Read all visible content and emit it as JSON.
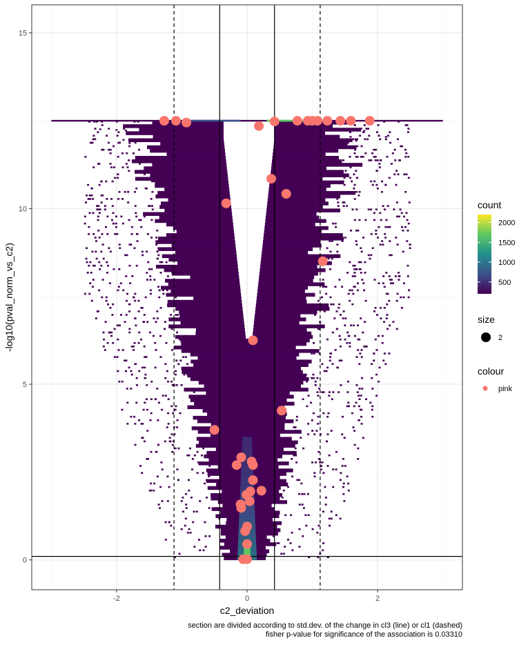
{
  "chart_data": {
    "type": "scatter",
    "title": "",
    "xlabel": "c2_deviation",
    "ylabel": "-log10(pval_norm_vs_c2)",
    "xlim": [
      -3.3,
      3.3
    ],
    "ylim": [
      -0.85,
      15.8
    ],
    "x_ticks": [
      -2,
      0,
      2
    ],
    "x_tick_labels": [
      "-2",
      "0",
      "2"
    ],
    "y_ticks": [
      0,
      5,
      10,
      15
    ],
    "y_tick_labels": [
      "0",
      "5",
      "10",
      "15"
    ],
    "grid": true,
    "background_density": {
      "description_hidden": true,
      "aes": "count",
      "x_range": [
        -3.0,
        3.0
      ],
      "y_cap": 12.5,
      "count_max": 2200,
      "colors": [
        "#440154",
        "#3b528b",
        "#21908c",
        "#5dc863",
        "#fde725"
      ]
    },
    "vlines_solid": [
      -0.42,
      0.42
    ],
    "vlines_dashed": [
      -1.12,
      1.12
    ],
    "hline": 0.1,
    "points": [
      {
        "x": -1.27,
        "y": 12.5
      },
      {
        "x": -1.09,
        "y": 12.5
      },
      {
        "x": -0.93,
        "y": 12.45
      },
      {
        "x": 0.18,
        "y": 12.35
      },
      {
        "x": 0.42,
        "y": 12.48
      },
      {
        "x": 0.77,
        "y": 12.5
      },
      {
        "x": 0.93,
        "y": 12.5
      },
      {
        "x": 1.0,
        "y": 12.5
      },
      {
        "x": 1.08,
        "y": 12.5
      },
      {
        "x": 1.23,
        "y": 12.5
      },
      {
        "x": 1.43,
        "y": 12.5
      },
      {
        "x": 1.59,
        "y": 12.5
      },
      {
        "x": 1.88,
        "y": 12.5
      },
      {
        "x": 0.37,
        "y": 10.85
      },
      {
        "x": 0.6,
        "y": 10.42
      },
      {
        "x": -0.32,
        "y": 10.15
      },
      {
        "x": 1.16,
        "y": 8.5
      },
      {
        "x": 0.09,
        "y": 6.25
      },
      {
        "x": 0.53,
        "y": 4.25
      },
      {
        "x": -0.5,
        "y": 3.7
      },
      {
        "x": -0.09,
        "y": 2.92
      },
      {
        "x": 0.07,
        "y": 2.8
      },
      {
        "x": -0.16,
        "y": 2.7
      },
      {
        "x": 0.09,
        "y": 2.7
      },
      {
        "x": 0.09,
        "y": 2.27
      },
      {
        "x": 0.22,
        "y": 1.97
      },
      {
        "x": 0.05,
        "y": 1.95
      },
      {
        "x": -0.01,
        "y": 1.85
      },
      {
        "x": 0.04,
        "y": 1.67
      },
      {
        "x": -0.1,
        "y": 1.58
      },
      {
        "x": -0.09,
        "y": 1.48
      },
      {
        "x": 0.0,
        "y": 0.95
      },
      {
        "x": -0.03,
        "y": 0.82
      },
      {
        "x": 0.0,
        "y": 0.45
      },
      {
        "x": -0.06,
        "y": 0.02
      },
      {
        "x": 0.0,
        "y": 0.02
      }
    ],
    "legend": {
      "count": {
        "title": "count",
        "ticks": [
          500,
          1000,
          1500,
          2000
        ],
        "tick_labels": [
          "500",
          "1000",
          "1500",
          "2000"
        ],
        "min": 200,
        "max": 2200
      },
      "size": {
        "title": "size",
        "label": "2"
      },
      "colour": {
        "title": "colour",
        "label": "pink",
        "color": "#f8766d"
      }
    },
    "caption": [
      "section are divided according to std.dev. of the change in cl3 (line) or cl1 (dashed)",
      "fisher p-value for significance of the association is 0.03310"
    ]
  }
}
